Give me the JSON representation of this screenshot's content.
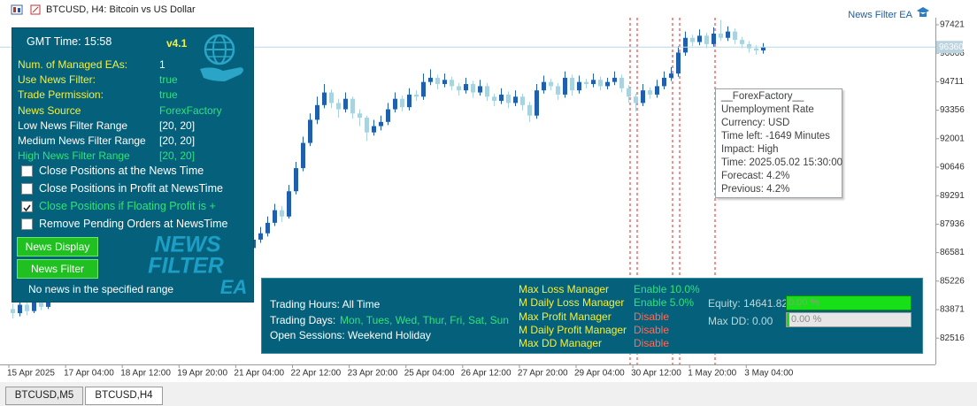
{
  "window": {
    "title": "BTCUSD, H4:  Bitcoin vs US Dollar",
    "ea_label": "News Filter EA"
  },
  "chart_data": {
    "type": "candlestick",
    "up_color": "#1f5fae",
    "down_color": "#a9d3df",
    "ylim": [
      81346,
      97758
    ],
    "yticks": [
      97421,
      96066,
      94711,
      93356,
      92001,
      90646,
      89291,
      87936,
      86581,
      85226,
      83871,
      82516
    ],
    "xticks": [
      "15 Apr 2025",
      "17 Apr 04:00",
      "18 Apr 12:00",
      "19 Apr 20:00",
      "21 Apr 04:00",
      "22 Apr 12:00",
      "23 Apr 20:00",
      "25 Apr 04:00",
      "26 Apr 12:00",
      "27 Apr 20:00",
      "29 Apr 04:00",
      "30 Apr 12:00",
      "1 May 20:00",
      "3 May 04:00"
    ],
    "last_price": 96360,
    "candles": [
      [
        83900,
        84150,
        83450,
        83700
      ],
      [
        83700,
        84300,
        83550,
        84100
      ],
      [
        84100,
        84250,
        83600,
        83800
      ],
      [
        83800,
        84500,
        83700,
        84300
      ],
      [
        84300,
        84450,
        83850,
        84000
      ],
      [
        84000,
        84600,
        83900,
        84400
      ],
      [
        84400,
        84800,
        84250,
        84600
      ],
      [
        84600,
        85100,
        84450,
        84900
      ],
      [
        84900,
        85050,
        84350,
        84500
      ],
      [
        84500,
        85200,
        84400,
        85000
      ],
      [
        85000,
        85500,
        84850,
        85300
      ],
      [
        85300,
        85400,
        84650,
        84800
      ],
      [
        84800,
        85250,
        84650,
        85100
      ],
      [
        85100,
        85200,
        84550,
        84700
      ],
      [
        84700,
        84850,
        84250,
        84400
      ],
      [
        84400,
        85050,
        84300,
        84900
      ],
      [
        84900,
        85350,
        84750,
        85200
      ],
      [
        85200,
        85700,
        85050,
        85500
      ],
      [
        85500,
        85600,
        84950,
        85100
      ],
      [
        85100,
        85250,
        84650,
        84800
      ],
      [
        84800,
        85150,
        84700,
        85000
      ],
      [
        85000,
        85600,
        84850,
        85400
      ],
      [
        85400,
        85500,
        85050,
        85200
      ],
      [
        85200,
        85300,
        84750,
        84900
      ],
      [
        84900,
        85450,
        84800,
        85300
      ],
      [
        85300,
        85400,
        84950,
        85100
      ],
      [
        85100,
        85200,
        84650,
        84800
      ],
      [
        84800,
        85200,
        84700,
        85000
      ],
      [
        85000,
        85400,
        84850,
        85200
      ],
      [
        85200,
        85800,
        85100,
        85600
      ],
      [
        85600,
        85700,
        85250,
        85400
      ],
      [
        85400,
        86100,
        85300,
        85900
      ],
      [
        85900,
        86500,
        85750,
        86300
      ],
      [
        86300,
        87000,
        86150,
        86800
      ],
      [
        86800,
        87400,
        86650,
        87200
      ],
      [
        87200,
        87800,
        87050,
        87500
      ],
      [
        87500,
        88300,
        87350,
        88000
      ],
      [
        88000,
        88900,
        87850,
        88600
      ],
      [
        88600,
        88800,
        88050,
        88300
      ],
      [
        88300,
        89800,
        88200,
        89500
      ],
      [
        89500,
        90900,
        89350,
        90600
      ],
      [
        90600,
        92100,
        90450,
        91800
      ],
      [
        91800,
        93200,
        91650,
        92900
      ],
      [
        92900,
        94000,
        92700,
        93600
      ],
      [
        93600,
        94600,
        93450,
        94200
      ],
      [
        94200,
        94350,
        93450,
        93700
      ],
      [
        93700,
        93900,
        93000,
        93400
      ],
      [
        93400,
        94200,
        93250,
        93900
      ],
      [
        93900,
        94000,
        92950,
        93200
      ],
      [
        93200,
        93400,
        92600,
        93000
      ],
      [
        93000,
        93100,
        91900,
        92300
      ],
      [
        92300,
        92900,
        92150,
        92600
      ],
      [
        92600,
        93100,
        92400,
        92800
      ],
      [
        92800,
        93700,
        92650,
        93400
      ],
      [
        93400,
        94200,
        93250,
        93900
      ],
      [
        93900,
        94050,
        93300,
        93500
      ],
      [
        93500,
        94400,
        93350,
        94100
      ],
      [
        94100,
        94300,
        93800,
        94000
      ],
      [
        94000,
        95100,
        93850,
        94700
      ],
      [
        94700,
        95300,
        94550,
        94900
      ],
      [
        94900,
        95050,
        94350,
        94600
      ],
      [
        94600,
        95100,
        94450,
        94800
      ],
      [
        94800,
        94950,
        94300,
        94500
      ],
      [
        94500,
        94650,
        94050,
        94300
      ],
      [
        94300,
        94900,
        94150,
        94600
      ],
      [
        94600,
        94750,
        93950,
        94200
      ],
      [
        94200,
        94800,
        94050,
        94500
      ],
      [
        94500,
        94650,
        93800,
        94000
      ],
      [
        94000,
        94150,
        93550,
        93800
      ],
      [
        93800,
        94400,
        93650,
        94100
      ],
      [
        94100,
        94250,
        93450,
        93700
      ],
      [
        93700,
        94300,
        93550,
        94000
      ],
      [
        94000,
        94150,
        93350,
        93600
      ],
      [
        93600,
        93750,
        92800,
        93100
      ],
      [
        93100,
        94600,
        92950,
        94300
      ],
      [
        94300,
        95000,
        94150,
        94700
      ],
      [
        94700,
        94850,
        94300,
        94500
      ],
      [
        94500,
        94650,
        93850,
        94100
      ],
      [
        94100,
        95200,
        93950,
        94900
      ],
      [
        94900,
        95050,
        94050,
        94300
      ],
      [
        94300,
        95000,
        94150,
        94700
      ],
      [
        94700,
        94850,
        94400,
        94600
      ],
      [
        94600,
        95100,
        94450,
        94800
      ],
      [
        94800,
        94950,
        94300,
        94500
      ],
      [
        94500,
        94900,
        94350,
        94700
      ],
      [
        94700,
        95200,
        94550,
        94900
      ],
      [
        94900,
        95050,
        94200,
        94400
      ],
      [
        94400,
        94550,
        93700,
        94000
      ],
      [
        94000,
        94150,
        93300,
        93700
      ],
      [
        93700,
        94600,
        93550,
        94300
      ],
      [
        94300,
        94450,
        93900,
        94100
      ],
      [
        94100,
        94800,
        93950,
        94500
      ],
      [
        94500,
        95200,
        94350,
        94900
      ],
      [
        94900,
        95400,
        94750,
        95100
      ],
      [
        95100,
        96400,
        94950,
        96100
      ],
      [
        96100,
        97100,
        95950,
        96800
      ],
      [
        96800,
        96950,
        96400,
        96600
      ],
      [
        96600,
        97200,
        96450,
        96900
      ],
      [
        96900,
        97050,
        96300,
        96500
      ],
      [
        96500,
        97300,
        96350,
        97000
      ],
      [
        97000,
        97650,
        96650,
        96800
      ],
      [
        96800,
        97350,
        96650,
        97100
      ],
      [
        97100,
        97250,
        96500,
        96700
      ],
      [
        96700,
        96850,
        96300,
        96500
      ],
      [
        96500,
        96650,
        96100,
        96300
      ],
      [
        96300,
        96450,
        96000,
        96200
      ],
      [
        96200,
        96550,
        96050,
        96360
      ]
    ]
  },
  "panel": {
    "gmt_time": "GMT Time: 15:58",
    "version": "v4.1",
    "rows": [
      [
        "Num. of Managed EAs:",
        "1"
      ],
      [
        "Use News Filter:",
        "true"
      ],
      [
        "Trade Permission:",
        "true"
      ],
      [
        "News Source",
        "ForexFactory"
      ],
      [
        "Low News Filter Range",
        "[20, 20]"
      ],
      [
        "Medium News Filter Range",
        "[20, 20]"
      ],
      [
        "High News Filter Range",
        "[20, 20]"
      ]
    ],
    "checkboxes": [
      {
        "label": "Close Positions at the News Time",
        "checked": false
      },
      {
        "label": "Close Positions in Profit at NewsTime",
        "checked": false
      },
      {
        "label": "Close Positions if Floating Profit is +",
        "checked": true
      },
      {
        "label": "Remove Pending Orders at NewsTime",
        "checked": false
      }
    ],
    "buttons": [
      "News Display",
      "News Filter"
    ],
    "logo": [
      "NEWS",
      "FILTER",
      "EA"
    ],
    "status": "No news in the specified range"
  },
  "tooltip": [
    "__ForexFactory__",
    "Unemployment Rate",
    "Currency: USD",
    "Time left: -1649 Minutes",
    "Impact: High",
    "Time: 2025.05.02 15:30:00",
    "Forecast: 4.2%",
    "Previous: 4.2%"
  ],
  "dashboard": {
    "trading_hours": "Trading Hours: All Time",
    "trading_days_label": "Trading Days:",
    "trading_days": "Mon, Tues, Wed, Thur, Fri, Sat, Sun",
    "open_sessions": "Open Sessions: Weekend Holiday",
    "managers": [
      [
        "Max Loss Manager",
        "Enable 10.0%"
      ],
      [
        "M Daily Loss Manager",
        "Enable 5.0%"
      ],
      [
        "Max Profit Manager",
        "Disable"
      ],
      [
        "M Daily Profit Manager",
        "Disable"
      ],
      [
        "Max DD Manager",
        "Disable"
      ]
    ],
    "equity": "Equity: 14641.82",
    "equity_bar": "0.00 %",
    "max_dd": "Max DD: 0.00",
    "max_dd_bar": "0.00 %"
  },
  "tabs": [
    "BTCUSD,M5",
    "BTCUSD,H4"
  ]
}
